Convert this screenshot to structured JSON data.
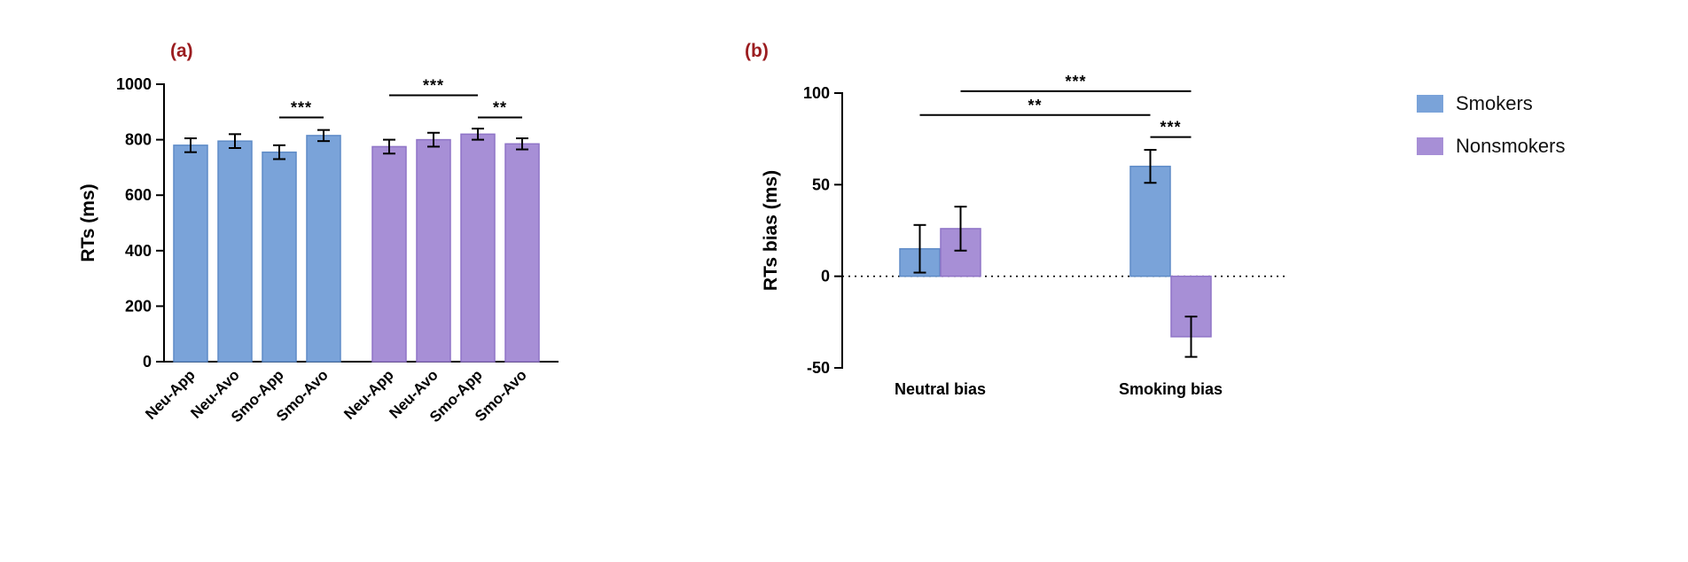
{
  "figure": {
    "background": "#ffffff",
    "panel_label_color": "#9b1c1f",
    "panels": [
      {
        "label": "(a)"
      },
      {
        "label": "(b)"
      }
    ]
  },
  "legend": {
    "position": "right",
    "items": [
      {
        "name": "Smokers",
        "color": "#7aa3d9",
        "edge": "#5e8bc7"
      },
      {
        "name": "Nonsmokers",
        "color": "#a78fd6",
        "edge": "#8f74c7"
      }
    ]
  },
  "chart_data": [
    {
      "type": "bar",
      "panel": "a",
      "title": "",
      "xlabel": "",
      "ylabel": "RTs (ms)",
      "ylim": [
        0,
        1000
      ],
      "yticks": [
        0,
        200,
        400,
        600,
        800,
        1000
      ],
      "grid": false,
      "group_names": [
        "Smokers",
        "Nonsmokers"
      ],
      "bars": [
        {
          "category": "Neu-App",
          "series": "Smokers",
          "value": 780,
          "error": 25
        },
        {
          "category": "Neu-Avo",
          "series": "Smokers",
          "value": 795,
          "error": 25
        },
        {
          "category": "Smo-App",
          "series": "Smokers",
          "value": 755,
          "error": 25
        },
        {
          "category": "Smo-Avo",
          "series": "Smokers",
          "value": 815,
          "error": 20
        },
        {
          "category": "Neu-App",
          "series": "Nonsmokers",
          "value": 775,
          "error": 25
        },
        {
          "category": "Neu-Avo",
          "series": "Nonsmokers",
          "value": 800,
          "error": 25
        },
        {
          "category": "Smo-App",
          "series": "Nonsmokers",
          "value": 820,
          "error": 20
        },
        {
          "category": "Smo-Avo",
          "series": "Nonsmokers",
          "value": 785,
          "error": 20
        }
      ],
      "significance": [
        {
          "from": 2,
          "to": 3,
          "label": "***",
          "y": 880
        },
        {
          "from": 4,
          "to": 6,
          "label": "***",
          "y": 960
        },
        {
          "from": 6,
          "to": 7,
          "label": "**",
          "y": 880
        }
      ]
    },
    {
      "type": "bar",
      "panel": "b",
      "title": "",
      "xlabel": "",
      "ylabel": "RTs bias (ms)",
      "ylim": [
        -50,
        100
      ],
      "yticks": [
        -50,
        0,
        50,
        100
      ],
      "grid": false,
      "zero_line": true,
      "categories": [
        "Neutral bias",
        "Smoking bias"
      ],
      "series_names": [
        "Smokers",
        "Nonsmokers"
      ],
      "bars": [
        {
          "category": "Neutral bias",
          "series": "Smokers",
          "value": 15,
          "error": 13
        },
        {
          "category": "Neutral bias",
          "series": "Nonsmokers",
          "value": 26,
          "error": 12
        },
        {
          "category": "Smoking bias",
          "series": "Smokers",
          "value": 60,
          "error": 9
        },
        {
          "category": "Smoking bias",
          "series": "Nonsmokers",
          "value": -33,
          "error": 11
        }
      ],
      "significance": [
        {
          "from": 1,
          "to": 3,
          "label": "***",
          "y": 101
        },
        {
          "from": 0,
          "to": 2,
          "label": "**",
          "y": 88
        },
        {
          "from": 2,
          "to": 3,
          "label": "***",
          "y": 76
        }
      ]
    }
  ]
}
